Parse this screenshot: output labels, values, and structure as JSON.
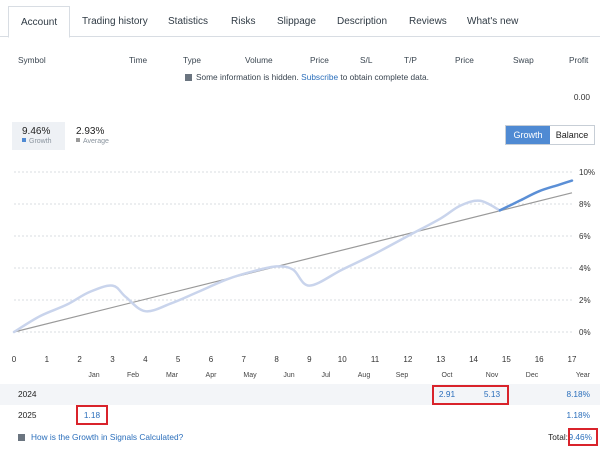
{
  "tabs": [
    {
      "label": "Account",
      "active": true
    },
    {
      "label": "Trading history"
    },
    {
      "label": "Statistics"
    },
    {
      "label": "Risks"
    },
    {
      "label": "Slippage"
    },
    {
      "label": "Description"
    },
    {
      "label": "Reviews"
    },
    {
      "label": "What's new"
    }
  ],
  "trades_table": {
    "columns": [
      "Symbol",
      "Time",
      "Type",
      "Volume",
      "Price",
      "S/L",
      "T/P",
      "Price",
      "Swap",
      "Profit"
    ],
    "hidden_notice": {
      "prefix": "Some information is hidden.",
      "link": "Subscribe",
      "suffix": "to obtain complete data."
    },
    "profit_total": "0.00"
  },
  "summary": {
    "growth": {
      "value": "9.46%",
      "label": "Growth"
    },
    "average": {
      "value": "2.93%",
      "label": "Average"
    }
  },
  "toggle": {
    "growth": "Growth",
    "balance": "Balance"
  },
  "chart_data": {
    "type": "line",
    "x_ticks": [
      "0",
      "1",
      "2",
      "3",
      "4",
      "5",
      "6",
      "7",
      "8",
      "9",
      "10",
      "11",
      "12",
      "13",
      "14",
      "15",
      "16",
      "17"
    ],
    "y_ticks": [
      "0%",
      "2%",
      "4%",
      "6%",
      "8%",
      "10%"
    ],
    "xlim": [
      0,
      17
    ],
    "ylim": [
      -1,
      10.5
    ],
    "series": [
      {
        "color": "#c9d4ec",
        "x": [
          0,
          0.8,
          1.6,
          2.3,
          3.0,
          3.4,
          4.0,
          4.8,
          5.6,
          6.5,
          7.3,
          8.0,
          8.5,
          9.0,
          10.0,
          11.0,
          12.0,
          13.0,
          13.6,
          14.2,
          14.8
        ],
        "y": [
          0,
          1.0,
          1.7,
          2.5,
          2.9,
          2.2,
          1.3,
          1.8,
          2.5,
          3.3,
          3.8,
          4.1,
          3.9,
          2.9,
          3.9,
          4.9,
          6.0,
          7.1,
          7.9,
          8.2,
          7.6
        ]
      },
      {
        "color": "#5b8fd6",
        "x": [
          14.8,
          15.4,
          16.0,
          16.6,
          17.0
        ],
        "y": [
          7.6,
          8.2,
          8.8,
          9.2,
          9.46
        ]
      },
      {
        "color": "#9a9a9a",
        "x": [
          0,
          17
        ],
        "y": [
          0,
          8.7
        ]
      }
    ]
  },
  "months": {
    "labels": [
      "Jan",
      "Feb",
      "Mar",
      "Apr",
      "May",
      "Jun",
      "Jul",
      "Aug",
      "Sep",
      "Oct",
      "Nov",
      "Dec"
    ],
    "year_header": "Year"
  },
  "years": [
    {
      "year": "2024",
      "values": [
        "",
        "",
        "",
        "",
        "",
        "",
        "",
        "",
        "",
        "2.91",
        "5.13",
        ""
      ],
      "total": "8.18%"
    },
    {
      "year": "2025",
      "values": [
        "1.18",
        "",
        "",
        "",
        "",
        "",
        "",
        "",
        "",
        "",
        "",
        ""
      ],
      "total": "1.18%"
    }
  ],
  "footer": {
    "link": "How is the Growth in Signals Calculated?",
    "total_label": "Total:",
    "total_value": "9.46%"
  },
  "colors": {
    "accent": "#4f8ad3",
    "link": "#2a6ebb",
    "highlight_box": "#d9232b"
  }
}
